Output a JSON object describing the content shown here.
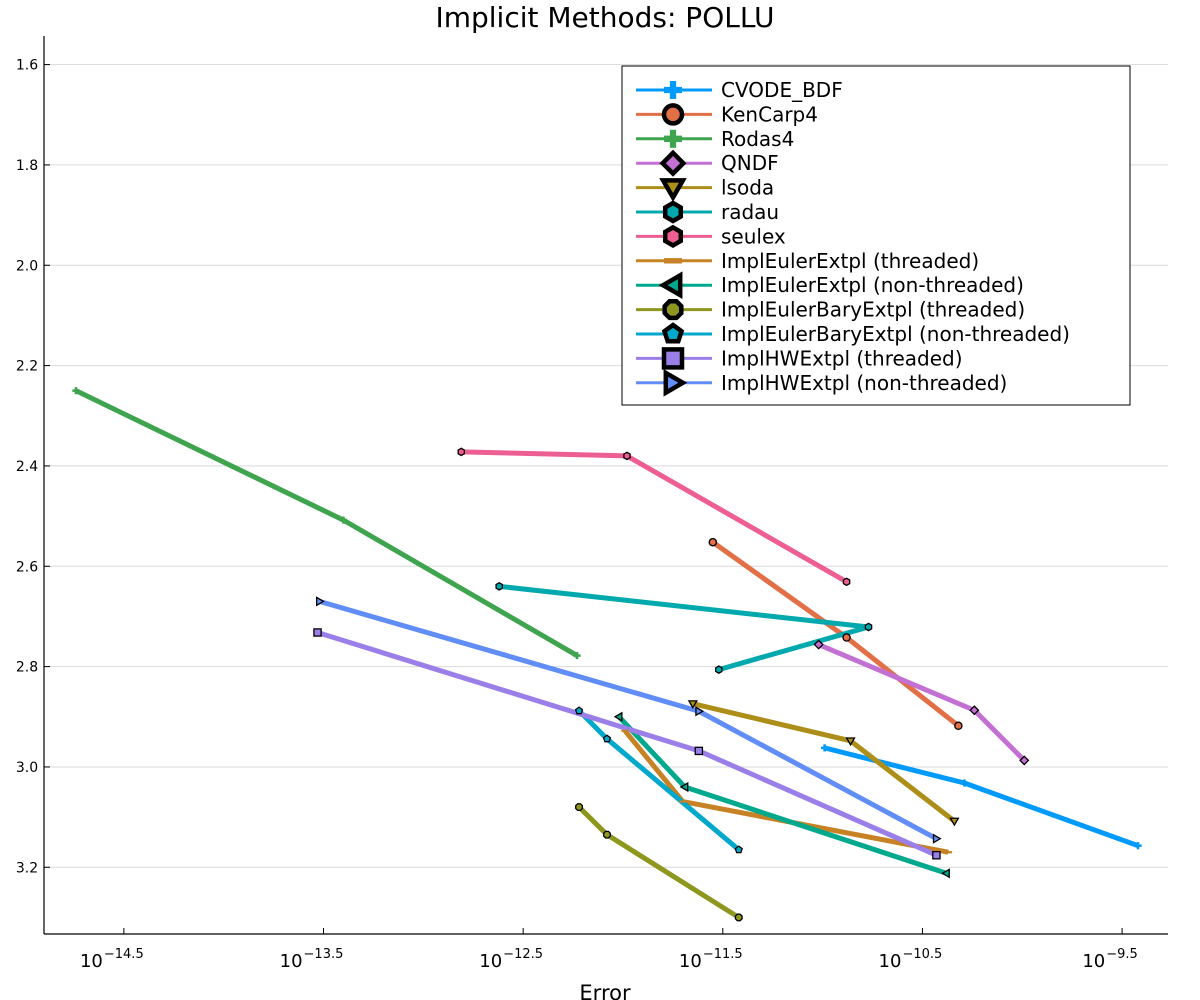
{
  "chart_data": {
    "type": "line",
    "title": "Implicit Methods: POLLU",
    "xlabel": "Error",
    "ylabel": "",
    "x_scale": "log10",
    "xlim_log10": [
      -14.9,
      -9.27
    ],
    "ylim": [
      3.333,
      1.543
    ],
    "y_inverted": true,
    "x_ticks": [
      {
        "base": "10",
        "exp": "−14.5",
        "value": -14.5
      },
      {
        "base": "10",
        "exp": "−13.5",
        "value": -13.5
      },
      {
        "base": "10",
        "exp": "−12.5",
        "value": -12.5
      },
      {
        "base": "10",
        "exp": "−11.5",
        "value": -11.5
      },
      {
        "base": "10",
        "exp": "−10.5",
        "value": -10.5
      },
      {
        "base": "10",
        "exp": "−9.5",
        "value": -9.5
      }
    ],
    "y_ticks": [
      {
        "label": "1.6",
        "value": 1.6
      },
      {
        "label": "1.8",
        "value": 1.8
      },
      {
        "label": "2.0",
        "value": 2.0
      },
      {
        "label": "2.2",
        "value": 2.2
      },
      {
        "label": "2.4",
        "value": 2.4
      },
      {
        "label": "2.6",
        "value": 2.6
      },
      {
        "label": "2.8",
        "value": 2.8
      },
      {
        "label": "3.0",
        "value": 3.0
      },
      {
        "label": "3.2",
        "value": 3.2
      }
    ],
    "grid": true,
    "legend_position": "top-right",
    "series": [
      {
        "name": "CVODE_BDF",
        "color": "#009AFA",
        "marker": "cross",
        "x_log10": [
          -10.99,
          -10.29,
          -9.42
        ],
        "y": [
          2.962,
          3.032,
          3.157
        ]
      },
      {
        "name": "KenCarp4",
        "color": "#E26F46",
        "marker": "circle",
        "x_log10": [
          -11.55,
          -10.88,
          -10.32
        ],
        "y": [
          2.552,
          2.742,
          2.918
        ]
      },
      {
        "name": "Rodas4",
        "color": "#3EA44E",
        "marker": "cross",
        "x_log10": [
          -14.74,
          -13.4,
          -12.23
        ],
        "y": [
          2.25,
          2.508,
          2.778
        ]
      },
      {
        "name": "QNDF",
        "color": "#C271D2",
        "marker": "diamond",
        "x_log10": [
          -11.02,
          -10.24,
          -9.99
        ],
        "y": [
          2.756,
          2.887,
          2.987
        ]
      },
      {
        "name": "lsoda",
        "color": "#AC8E18",
        "marker": "triangle-down",
        "x_log10": [
          -11.65,
          -10.86,
          -10.34
        ],
        "y": [
          2.874,
          2.948,
          3.108
        ]
      },
      {
        "name": "radau",
        "color": "#00A9AD",
        "marker": "hexagon",
        "x_log10": [
          -12.62,
          -10.77,
          -11.52
        ],
        "y": [
          2.64,
          2.721,
          2.806
        ]
      },
      {
        "name": "seulex",
        "color": "#ED5E93",
        "marker": "hexagon",
        "x_log10": [
          -12.81,
          -11.98,
          -10.88
        ],
        "y": [
          2.372,
          2.38,
          2.631
        ]
      },
      {
        "name": "ImplEulerExtpl (threaded)",
        "color": "#C68225",
        "marker": "dash",
        "x_log10": [
          -11.99,
          -11.7,
          -10.37
        ],
        "y": [
          2.928,
          3.069,
          3.17
        ]
      },
      {
        "name": "ImplEulerExtpl (non-threaded)",
        "color": "#00A98D",
        "marker": "triangle-left",
        "x_log10": [
          -12.02,
          -11.69,
          -10.38
        ],
        "y": [
          2.9,
          3.04,
          3.212
        ]
      },
      {
        "name": "ImplEulerBaryExtpl (threaded)",
        "color": "#8E971D",
        "marker": "octagon",
        "x_log10": [
          -12.22,
          -12.08,
          -11.42
        ],
        "y": [
          3.08,
          3.135,
          3.3
        ]
      },
      {
        "name": "ImplEulerBaryExtpl (non-threaded)",
        "color": "#00A8CB",
        "marker": "pentagon",
        "x_log10": [
          -12.22,
          -12.08,
          -11.42
        ],
        "y": [
          2.888,
          2.944,
          3.165
        ]
      },
      {
        "name": "ImplHWExtpl (threaded)",
        "color": "#9B7FE9",
        "marker": "square",
        "x_log10": [
          -13.53,
          -11.62,
          -10.43
        ],
        "y": [
          2.732,
          2.968,
          3.176
        ]
      },
      {
        "name": "ImplHWExtpl (non-threaded)",
        "color": "#618DF6",
        "marker": "triangle-right",
        "x_log10": [
          -13.52,
          -11.62,
          -10.43
        ],
        "y": [
          2.67,
          2.889,
          3.143
        ]
      }
    ]
  }
}
